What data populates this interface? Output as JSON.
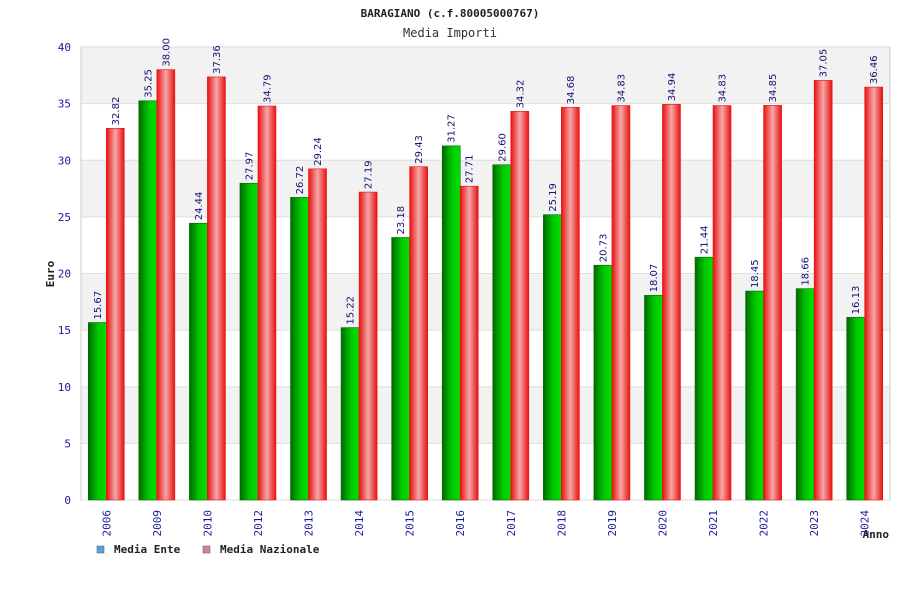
{
  "colors": {
    "ente_bar": "#00b400",
    "ente_bar_dark": "#006a00",
    "naz_bar": "#ee1111",
    "naz_bar_light": "#f4a3a3",
    "legend_ente": "#5aa0e0",
    "legend_naz": "#d98098",
    "band": "#f2f2f2",
    "axis": "#cccccc"
  },
  "chart_data": {
    "type": "bar",
    "title": "BARAGIANO (c.f.80005000767)",
    "subtitle": "Media Importi",
    "xlabel": "Anno",
    "ylabel": "Euro",
    "ylim": [
      0,
      40
    ],
    "yticks": [
      0,
      5,
      10,
      15,
      20,
      25,
      30,
      35,
      40
    ],
    "grid": true,
    "legend_position": "bottom-left",
    "categories": [
      "2006",
      "2009",
      "2010",
      "2012",
      "2013",
      "2014",
      "2015",
      "2016",
      "2017",
      "2018",
      "2019",
      "2020",
      "2021",
      "2022",
      "2023",
      "2024"
    ],
    "series": [
      {
        "name": "Media Ente",
        "values": [
          15.67,
          35.25,
          24.44,
          27.97,
          26.72,
          15.22,
          23.18,
          31.27,
          29.6,
          25.19,
          20.73,
          18.07,
          21.44,
          18.45,
          18.66,
          16.13
        ],
        "labels": [
          "15.67",
          "35.25",
          "24.44",
          "27.97",
          "26.72",
          "15.22",
          "23.18",
          "31.27",
          "29.60",
          "25.19",
          "20.73",
          "18.07",
          "21.44",
          "18.45",
          "18.66",
          "16.13"
        ]
      },
      {
        "name": "Media Nazionale",
        "values": [
          32.82,
          38.0,
          37.36,
          34.79,
          29.24,
          27.19,
          29.43,
          27.71,
          34.32,
          34.68,
          34.83,
          34.94,
          34.83,
          34.85,
          37.05,
          36.46
        ],
        "labels": [
          "32.82",
          "38.00",
          "37.36",
          "34.79",
          "29.24",
          "27.19",
          "29.43",
          "27.71",
          "34.32",
          "34.68",
          "34.83",
          "34.94",
          "34.83",
          "34.85",
          "37.05",
          "36.46"
        ]
      }
    ]
  }
}
